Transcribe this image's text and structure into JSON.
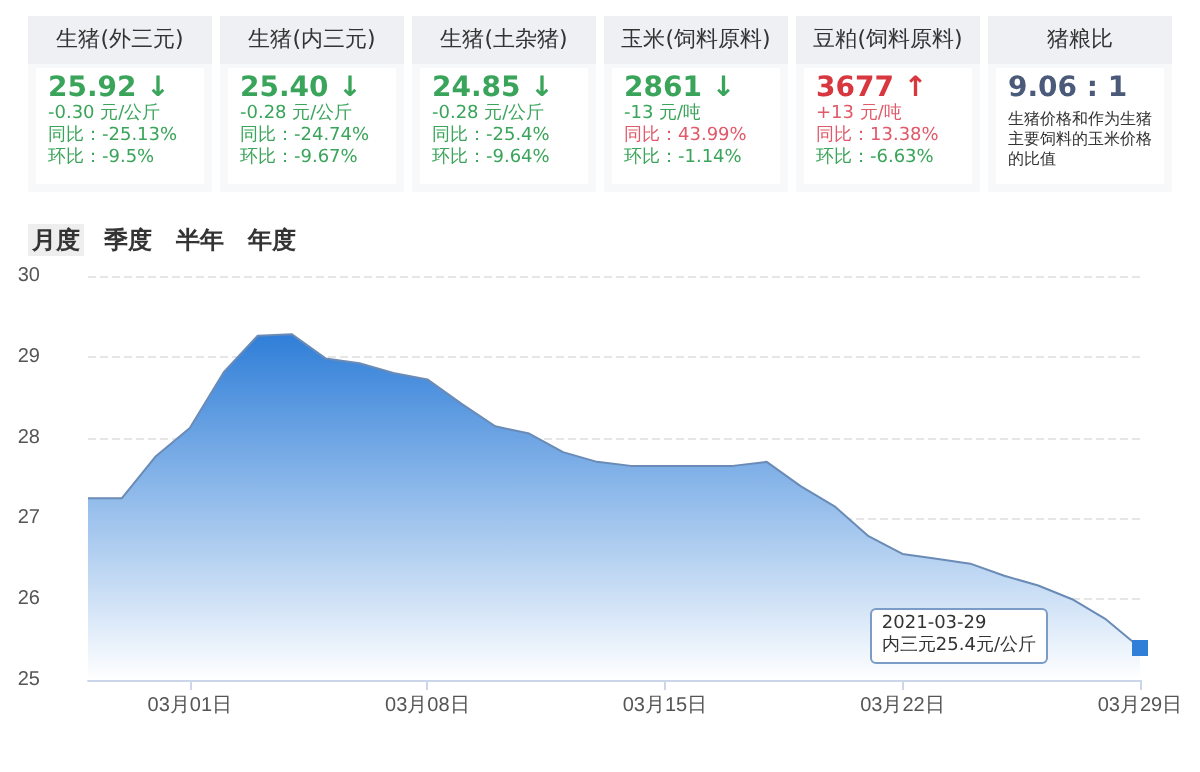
{
  "chart_data": [
    {
      "type": "other",
      "title": "生猪(外三元)",
      "annotations": [
        "25.92 ↓",
        "-0.30 元/公斤",
        "同比：-25.13%",
        "环比：-9.5%"
      ],
      "colors": [
        "#3aa55a",
        "#3aa55a",
        "#3aa55a",
        "#3aa55a"
      ]
    },
    {
      "type": "other",
      "title": "生猪(内三元)",
      "annotations": [
        "25.40 ↓",
        "-0.28 元/公斤",
        "同比：-24.74%",
        "环比：-9.67%"
      ],
      "colors": [
        "#3aa55a",
        "#3aa55a",
        "#3aa55a",
        "#3aa55a"
      ]
    },
    {
      "type": "other",
      "title": "生猪(土杂猪)",
      "annotations": [
        "24.85 ↓",
        "-0.28 元/公斤",
        "同比：-25.4%",
        "环比：-9.64%"
      ],
      "colors": [
        "#3aa55a",
        "#3aa55a",
        "#3aa55a",
        "#3aa55a"
      ]
    },
    {
      "type": "other",
      "title": "玉米(饲料原料)",
      "annotations": [
        "2861 ↓",
        "-13 元/吨",
        "同比：43.99%",
        "环比：-1.14%"
      ],
      "colors": [
        "#3aa55a",
        "#3aa55a",
        "#e05a6a",
        "#3aa55a"
      ]
    },
    {
      "type": "other",
      "title": "豆粕(饲料原料)",
      "annotations": [
        "3677 ↑",
        "+13 元/吨",
        "同比：13.38%",
        "环比：-6.63%"
      ],
      "colors": [
        "#d9373f",
        "#e05a6a",
        "#e05a6a",
        "#3aa55a"
      ]
    },
    {
      "type": "other",
      "title": "猪粮比",
      "annotations": [
        "9.06 : 1",
        "生猪价格和作为生猪主要饲料的玉米价格的比值"
      ],
      "colors": [
        "#4a5a78",
        "#333333"
      ]
    },
    {
      "type": "area",
      "annotations": [
        "月度",
        "季度",
        "半年",
        "年度",
        "2021-03-29",
        "内三元25.4元/公斤"
      ],
      "x": [
        "2021-02-26",
        "2021-02-27",
        "2021-02-28",
        "2021-03-01",
        "2021-03-02",
        "2021-03-03",
        "2021-03-04",
        "2021-03-05",
        "2021-03-06",
        "2021-03-07",
        "2021-03-08",
        "2021-03-09",
        "2021-03-10",
        "2021-03-11",
        "2021-03-12",
        "2021-03-13",
        "2021-03-14",
        "2021-03-15",
        "2021-03-16",
        "2021-03-17",
        "2021-03-18",
        "2021-03-19",
        "2021-03-20",
        "2021-03-21",
        "2021-03-22",
        "2021-03-23",
        "2021-03-24",
        "2021-03-25",
        "2021-03-26",
        "2021-03-27",
        "2021-03-28",
        "2021-03-29"
      ],
      "values": [
        27.25,
        27.25,
        27.77,
        28.12,
        28.81,
        29.26,
        29.28,
        28.98,
        28.92,
        28.8,
        28.72,
        28.42,
        28.14,
        28.05,
        27.82,
        27.7,
        27.65,
        27.65,
        27.65,
        27.65,
        27.7,
        27.4,
        27.15,
        26.78,
        26.56,
        26.5,
        26.44,
        26.29,
        26.17,
        26.0,
        25.75,
        25.4
      ],
      "color": "#2f7ed8",
      "xlim": [
        "2021-02-26",
        "2021-03-29"
      ],
      "xticks": [
        {
          "value": "2021-03-01",
          "label": "03月01日"
        },
        {
          "value": "2021-03-08",
          "label": "03月08日"
        },
        {
          "value": "2021-03-15",
          "label": "03月15日"
        },
        {
          "value": "2021-03-22",
          "label": "03月22日"
        },
        {
          "value": "2021-03-29",
          "label": "03月29日"
        }
      ],
      "ylim": [
        25,
        30
      ],
      "yticks": [
        25,
        26,
        27,
        28,
        29,
        30
      ],
      "grid": "y"
    }
  ]
}
